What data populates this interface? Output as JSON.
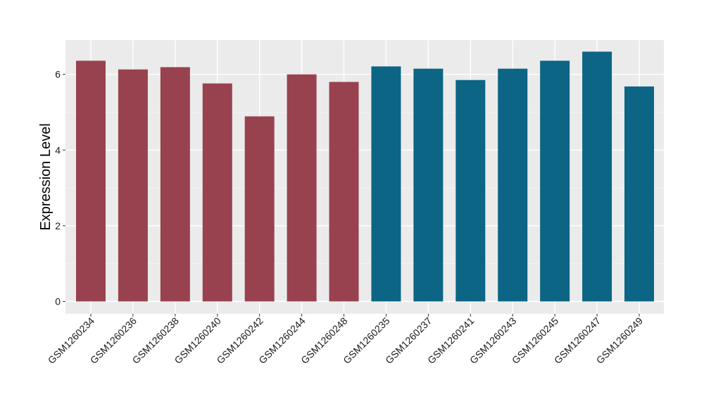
{
  "chart_data": {
    "type": "bar",
    "title": "",
    "xlabel": "",
    "ylabel": "Expression Level",
    "ylim": [
      0,
      6.9
    ],
    "yticks": [
      0,
      2,
      4,
      6
    ],
    "grid": true,
    "legend": "none",
    "categories": [
      "GSM1260234",
      "GSM1260236",
      "GSM1260238",
      "GSM1260240",
      "GSM1260242",
      "GSM1260244",
      "GSM1260248",
      "GSM1260235",
      "GSM1260237",
      "GSM1260241",
      "GSM1260243",
      "GSM1260245",
      "GSM1260247",
      "GSM1260249"
    ],
    "values": [
      6.36,
      6.13,
      6.19,
      5.76,
      4.89,
      6.0,
      5.8,
      6.21,
      6.15,
      5.85,
      6.15,
      6.36,
      6.6,
      5.68
    ],
    "groups": [
      0,
      0,
      0,
      0,
      0,
      0,
      0,
      1,
      1,
      1,
      1,
      1,
      1,
      1
    ],
    "colors": {
      "group_0": "#99424f",
      "group_1": "#0c6585",
      "panel_background": "#ebebeb",
      "grid_major": "#ffffff",
      "grid_minor": "#f5f5f5",
      "axis_tick": "#333333"
    }
  }
}
